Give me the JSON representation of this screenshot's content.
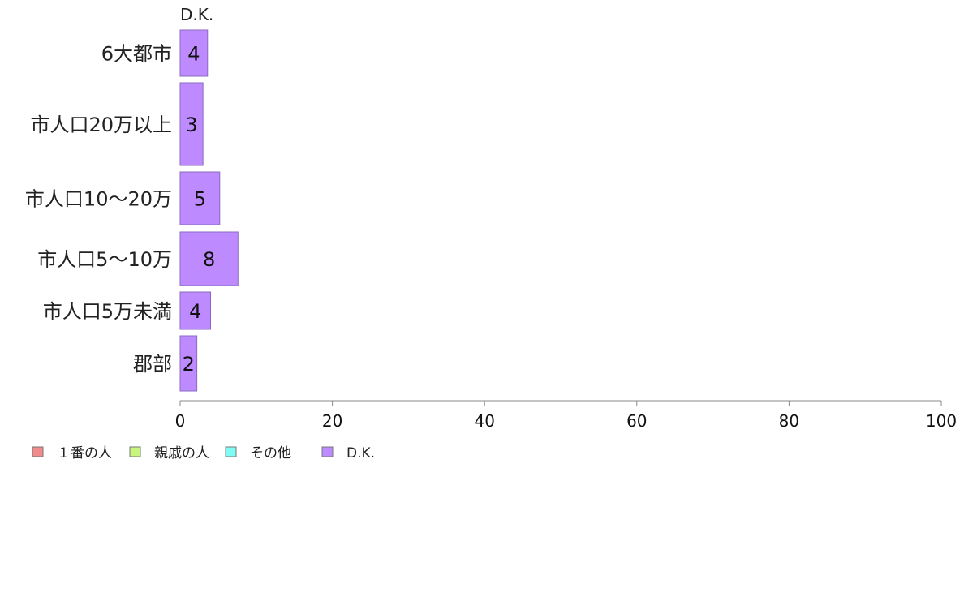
{
  "chart_data": {
    "type": "bar",
    "orientation": "horizontal",
    "stacked": true,
    "categories": [
      "6大都市",
      "市人口20万以上",
      "市人口10～20万",
      "市人口5～10万",
      "市人口5万未満",
      "郡部"
    ],
    "series": [
      {
        "name": "１番の人",
        "color": "#f28b8b",
        "values": [
          0,
          0,
          0,
          0,
          0,
          0
        ]
      },
      {
        "name": "親戚の人",
        "color": "#c8f57c",
        "values": [
          0,
          0,
          0,
          0,
          0,
          0
        ]
      },
      {
        "name": "その他",
        "color": "#7ffcf6",
        "values": [
          0,
          0,
          0,
          0,
          0,
          0
        ]
      },
      {
        "name": "D.K.",
        "color": "#bd8bff",
        "values": [
          3.6,
          3,
          5.2,
          7.6,
          4,
          2.2
        ]
      }
    ],
    "data_labels": [
      "4",
      "3",
      "5",
      "8",
      "4",
      "2"
    ],
    "top_series_label": "D.K.",
    "xlim": [
      0,
      100
    ],
    "xticks": [
      0,
      20,
      40,
      60,
      80,
      100
    ],
    "grid": false,
    "legend_position": "bottom-left"
  }
}
